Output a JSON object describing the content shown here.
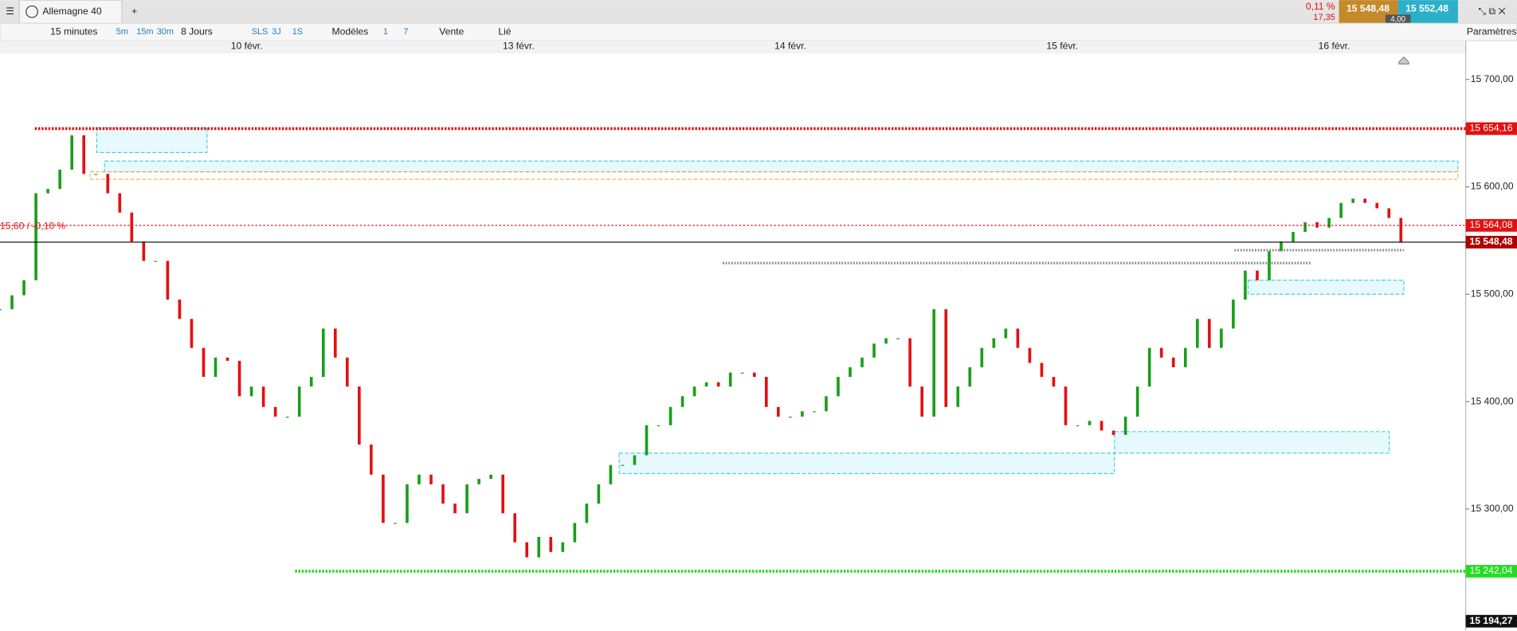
{
  "toolbar": {
    "instrument": "Allemagne 40",
    "period": "15 minutes",
    "quick_periods": [
      "5m",
      "15m",
      "30m"
    ],
    "range": "8 Jours",
    "quick_ranges": [
      "SLS",
      "3J",
      "1S"
    ],
    "templates": "Modèles",
    "counts": [
      "1",
      "7"
    ],
    "side": "Vente",
    "linked": "Lié",
    "settings": "Paramètres",
    "change_pct": "0,11 %",
    "change_pts": "17,35",
    "sell_price": "15 548,48",
    "buy_price": "15 552,48",
    "spread": "4,00"
  },
  "chart_data": {
    "type": "candlestick",
    "dates": [
      "10 févr.",
      "13 févr.",
      "14 févr.",
      "15 févr.",
      "16 févr."
    ],
    "ylim": [
      15186.5,
      15724.3
    ],
    "yticks": [
      {
        "value": 15300,
        "label": "15 300,00"
      },
      {
        "value": 15400,
        "label": "15 400,00"
      },
      {
        "value": 15500,
        "label": "15 500,00"
      },
      {
        "value": 15600,
        "label": "15 600,00"
      },
      {
        "value": 15700,
        "label": "15 700,00"
      }
    ],
    "up_color": "#1a9e1a",
    "down_color": "#e31010",
    "closes": [
      15486,
      15499,
      15513,
      15594,
      15598,
      15616,
      15648,
      15612,
      15612,
      15594,
      15576,
      15549,
      15531,
      15531,
      15495,
      15477,
      15450,
      15423,
      15441,
      15438,
      15405,
      15414,
      15395,
      15386,
      15386,
      15414,
      15423,
      15468,
      15441,
      15414,
      15360,
      15332,
      15287,
      15287,
      15323,
      15332,
      15323,
      15305,
      15296,
      15323,
      15328,
      15332,
      15296,
      15269,
      15255,
      15274,
      15260,
      15269,
      15287,
      15305,
      15323,
      15341,
      15341,
      15350,
      15378,
      15378,
      15395,
      15405,
      15414,
      15418,
      15414,
      15427,
      15427,
      15423,
      15395,
      15386,
      15386,
      15391,
      15391,
      15405,
      15423,
      15432,
      15441,
      15454,
      15459,
      15459,
      15414,
      15386,
      15486,
      15395,
      15414,
      15432,
      15450,
      15459,
      15468,
      15450,
      15436,
      15423,
      15414,
      15378,
      15378,
      15382,
      15373,
      15369,
      15386,
      15414,
      15450,
      15441,
      15432,
      15450,
      15477,
      15450,
      15468,
      15495,
      15522,
      15513,
      15540,
      15549,
      15558,
      15567,
      15562,
      15571,
      15585,
      15589,
      15585,
      15580,
      15571,
      15548
    ],
    "levels": [
      {
        "value": 15654.16,
        "label": "15 654,16",
        "color": "#e31010",
        "style": "thick"
      },
      {
        "value": 15564.08,
        "label": "15 564,08",
        "color": "#e31010",
        "style": "thin",
        "note": "15,60 / -0,10 %"
      },
      {
        "value": 15548.48,
        "label": "15 548,48",
        "color": "#b00000",
        "style": "solid"
      },
      {
        "value": 15242.04,
        "label": "15 242,04",
        "color": "#22dd22",
        "style": "thick"
      },
      {
        "value": 15194.27,
        "label": "15 194,27",
        "color": "#111111",
        "style": "none"
      }
    ],
    "zones": [
      {
        "high": 15655,
        "low": 15632
      },
      {
        "high": 15624,
        "low": 15614
      },
      {
        "high": 15614,
        "low": 15607,
        "color": "#f0a020"
      },
      {
        "high": 15513,
        "low": 15500
      },
      {
        "high": 15352,
        "low": 15333
      },
      {
        "high": 15372,
        "low": 15352
      }
    ],
    "dotted": [
      15529,
      15541
    ]
  }
}
